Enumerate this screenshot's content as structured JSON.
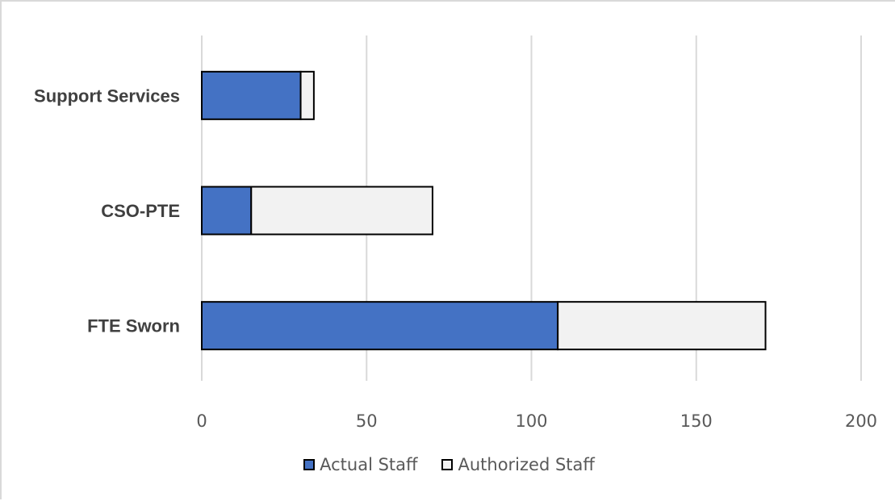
{
  "chart_data": {
    "type": "bar",
    "orientation": "horizontal",
    "stacked": true,
    "categories": [
      "FTE Sworn",
      "CSO-PTE",
      "Support Services"
    ],
    "series": [
      {
        "name": "Actual Staff",
        "color": "#4472c4",
        "values": [
          108,
          15,
          30
        ]
      },
      {
        "name": "Authorized Staff",
        "color": "#f2f2f2",
        "values": [
          63,
          55,
          4
        ]
      }
    ],
    "xlim": [
      0,
      200
    ],
    "xticks": [
      "0",
      "50",
      "100",
      "150",
      "200"
    ],
    "grid": "vertical",
    "legend_position": "bottom"
  }
}
